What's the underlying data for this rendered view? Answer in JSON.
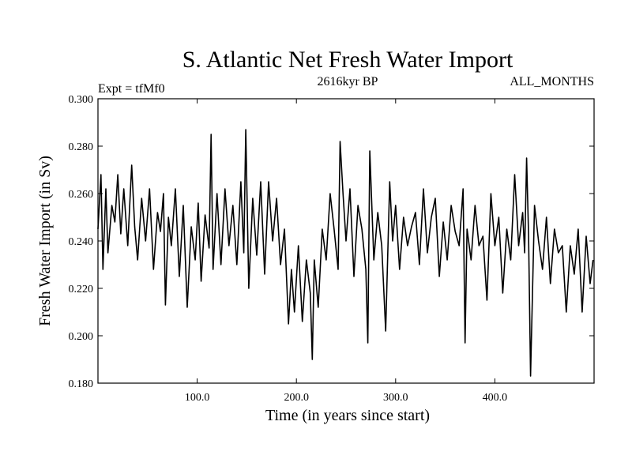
{
  "chart_data": {
    "type": "line",
    "title": "S. Atlantic Net Fresh Water Import",
    "subtitle": "2616kyr BP",
    "left_label": "Expt = tfMf0",
    "right_label": "ALL_MONTHS",
    "xlabel": "Time (in years since start)",
    "ylabel": "Fresh Water Import (in Sv)",
    "xlim": [
      0,
      500
    ],
    "ylim": [
      0.18,
      0.3
    ],
    "xticks": [
      100,
      200,
      300,
      400
    ],
    "xtick_labels": [
      "100.0",
      "200.0",
      "300.0",
      "400.0"
    ],
    "yticks": [
      0.18,
      0.2,
      0.22,
      0.24,
      0.26,
      0.28,
      0.3
    ],
    "ytick_labels": [
      "0.180",
      "0.200",
      "0.220",
      "0.240",
      "0.260",
      "0.280",
      "0.300"
    ],
    "grid": false,
    "series": [
      {
        "name": "Fresh Water Import",
        "color": "#000000",
        "x": [
          0,
          3,
          5,
          8,
          10,
          14,
          17,
          20,
          23,
          26,
          30,
          34,
          37,
          40,
          44,
          48,
          52,
          56,
          60,
          63,
          66,
          68,
          71,
          74,
          78,
          82,
          86,
          90,
          94,
          98,
          101,
          104,
          108,
          112,
          114,
          116,
          120,
          124,
          128,
          132,
          136,
          140,
          144,
          147,
          149,
          152,
          156,
          160,
          164,
          168,
          172,
          176,
          180,
          184,
          188,
          192,
          195,
          198,
          202,
          206,
          210,
          214,
          216,
          218,
          222,
          226,
          230,
          234,
          238,
          242,
          244,
          247,
          250,
          254,
          258,
          262,
          266,
          270,
          272,
          274,
          278,
          282,
          286,
          290,
          294,
          297,
          300,
          304,
          308,
          312,
          316,
          320,
          324,
          328,
          332,
          336,
          340,
          344,
          348,
          352,
          356,
          360,
          364,
          368,
          370,
          372,
          376,
          380,
          384,
          388,
          392,
          396,
          400,
          404,
          408,
          412,
          416,
          420,
          424,
          428,
          430,
          432,
          434,
          436,
          440,
          444,
          448,
          452,
          456,
          460,
          464,
          468,
          472,
          476,
          480,
          484,
          488,
          492,
          496,
          499
        ],
        "values": [
          0.245,
          0.268,
          0.228,
          0.262,
          0.235,
          0.255,
          0.248,
          0.268,
          0.243,
          0.262,
          0.238,
          0.272,
          0.246,
          0.232,
          0.258,
          0.24,
          0.262,
          0.228,
          0.252,
          0.244,
          0.26,
          0.213,
          0.25,
          0.238,
          0.262,
          0.225,
          0.255,
          0.212,
          0.246,
          0.232,
          0.256,
          0.223,
          0.251,
          0.237,
          0.285,
          0.228,
          0.26,
          0.23,
          0.262,
          0.238,
          0.255,
          0.23,
          0.265,
          0.235,
          0.287,
          0.22,
          0.258,
          0.234,
          0.265,
          0.226,
          0.265,
          0.24,
          0.258,
          0.23,
          0.245,
          0.205,
          0.228,
          0.21,
          0.238,
          0.206,
          0.232,
          0.218,
          0.19,
          0.232,
          0.212,
          0.245,
          0.232,
          0.26,
          0.245,
          0.228,
          0.282,
          0.26,
          0.24,
          0.262,
          0.225,
          0.255,
          0.245,
          0.228,
          0.197,
          0.278,
          0.232,
          0.252,
          0.238,
          0.202,
          0.265,
          0.24,
          0.255,
          0.228,
          0.25,
          0.238,
          0.246,
          0.252,
          0.23,
          0.262,
          0.235,
          0.25,
          0.258,
          0.225,
          0.248,
          0.232,
          0.255,
          0.244,
          0.238,
          0.262,
          0.197,
          0.245,
          0.232,
          0.255,
          0.238,
          0.242,
          0.215,
          0.26,
          0.238,
          0.25,
          0.218,
          0.245,
          0.232,
          0.268,
          0.238,
          0.252,
          0.235,
          0.275,
          0.242,
          0.183,
          0.255,
          0.24,
          0.228,
          0.25,
          0.222,
          0.245,
          0.235,
          0.238,
          0.21,
          0.238,
          0.226,
          0.245,
          0.21,
          0.242,
          0.222,
          0.232
        ]
      }
    ]
  }
}
